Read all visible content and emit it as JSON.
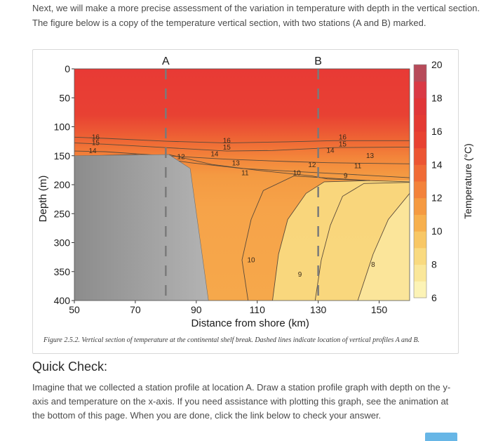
{
  "intro_text": "Next, we will make a more precise assessment of the variation in temperature with depth in the vertical section. The figure below is a copy of the temperature vertical section, with two stations (A and B) marked.",
  "caption": "Figure 2.5.2. Vertical section of temperature at the continental shelf break. Dashed lines indicate location of vertical profiles A and B.",
  "quick_check": {
    "title": "Quick Check:",
    "body": "Imagine that we collected a station profile at location A. Draw a station profile graph with depth on the y-axis and temperature on the x-axis. If you need assistance with plotting this graph, see the animation at the bottom of this page. When you are done, click the link below to check your answer.",
    "button_label": ""
  },
  "chart_data": {
    "type": "heatmap",
    "title": "",
    "xlabel": "Distance from shore (km)",
    "ylabel": "Depth (m)",
    "colorbar_label": "Temperature (°C)",
    "xlim": [
      50,
      160
    ],
    "ylim": [
      0,
      400
    ],
    "y_inverted": true,
    "x_ticks": [
      50,
      70,
      90,
      110,
      130,
      150
    ],
    "y_ticks": [
      0,
      50,
      100,
      150,
      200,
      250,
      300,
      350,
      400
    ],
    "colorbar_range": [
      6,
      20
    ],
    "colorbar_ticks": [
      6,
      8,
      10,
      12,
      14,
      16,
      18,
      20
    ],
    "colorbar_levels": [
      {
        "from": 6,
        "to": 7,
        "color": "#fcf3b6"
      },
      {
        "from": 7,
        "to": 8,
        "color": "#fae79a"
      },
      {
        "from": 8,
        "to": 9,
        "color": "#f9da80"
      },
      {
        "from": 9,
        "to": 10,
        "color": "#f8c765"
      },
      {
        "from": 10,
        "to": 11,
        "color": "#f7b04e"
      },
      {
        "from": 11,
        "to": 12,
        "color": "#f59a42"
      },
      {
        "from": 12,
        "to": 13,
        "color": "#f3823b"
      },
      {
        "from": 13,
        "to": 14,
        "color": "#f06b36"
      },
      {
        "from": 14,
        "to": 15,
        "color": "#ec5533"
      },
      {
        "from": 15,
        "to": 16,
        "color": "#e84232"
      },
      {
        "from": 16,
        "to": 17,
        "color": "#e43a33"
      },
      {
        "from": 17,
        "to": 18,
        "color": "#e03638"
      },
      {
        "from": 18,
        "to": 19,
        "color": "#da3a45"
      },
      {
        "from": 19,
        "to": 20,
        "color": "#b74b5a"
      }
    ],
    "stations": [
      {
        "name": "A",
        "x": 80
      },
      {
        "name": "B",
        "x": 130
      }
    ],
    "seafloor": [
      [
        50,
        150
      ],
      [
        81,
        148
      ],
      [
        88,
        172
      ],
      [
        94,
        400
      ]
    ],
    "isotherms": [
      {
        "value": 16,
        "points": [
          [
            50,
            118
          ],
          [
            60,
            120
          ],
          [
            80,
            125
          ],
          [
            100,
            128
          ],
          [
            120,
            126
          ],
          [
            135,
            124
          ],
          [
            160,
            124
          ]
        ]
      },
      {
        "value": 15,
        "points": [
          [
            50,
            128
          ],
          [
            60,
            130
          ],
          [
            80,
            136
          ],
          [
            100,
            142
          ],
          [
            115,
            141
          ],
          [
            135,
            136
          ],
          [
            160,
            135
          ]
        ]
      },
      {
        "value": 14,
        "points": [
          [
            50,
            142
          ],
          [
            60,
            143
          ],
          [
            80,
            150
          ],
          [
            100,
            156
          ],
          [
            120,
            160
          ],
          [
            133,
            162
          ],
          [
            160,
            164
          ]
        ]
      },
      {
        "value": 13,
        "points": [
          [
            55,
            150
          ],
          [
            70,
            148
          ],
          [
            88,
            162
          ],
          [
            105,
            172
          ],
          [
            125,
            178
          ],
          [
            140,
            182
          ],
          [
            160,
            188
          ]
        ]
      },
      {
        "value": 12,
        "points": [
          [
            81,
            148
          ],
          [
            95,
            165
          ],
          [
            110,
            175
          ],
          [
            128,
            185
          ],
          [
            133,
            190
          ],
          [
            147,
            193
          ]
        ]
      },
      {
        "value": 11,
        "points": [
          [
            107,
            400
          ],
          [
            105,
            330
          ],
          [
            108,
            260
          ],
          [
            112,
            210
          ],
          [
            122,
            185
          ],
          [
            147,
            193
          ],
          [
            160,
            195
          ]
        ]
      },
      {
        "value": 10,
        "points": [
          [
            115,
            400
          ],
          [
            117,
            320
          ],
          [
            120,
            260
          ],
          [
            126,
            215
          ],
          [
            132,
            195
          ],
          [
            147,
            193
          ]
        ]
      },
      {
        "value": 9,
        "points": [
          [
            129,
            400
          ],
          [
            131,
            330
          ],
          [
            134,
            270
          ],
          [
            138,
            220
          ],
          [
            145,
            198
          ],
          [
            160,
            196
          ]
        ]
      },
      {
        "value": 8,
        "points": [
          [
            143,
            400
          ],
          [
            148,
            320
          ],
          [
            153,
            260
          ],
          [
            160,
            215
          ]
        ]
      }
    ],
    "contour_labels": [
      {
        "text": "16",
        "x": 57,
        "y": 118
      },
      {
        "text": "15",
        "x": 57,
        "y": 128
      },
      {
        "text": "14",
        "x": 56,
        "y": 142
      },
      {
        "text": "16",
        "x": 100,
        "y": 124
      },
      {
        "text": "15",
        "x": 100,
        "y": 136
      },
      {
        "text": "14",
        "x": 96,
        "y": 147
      },
      {
        "text": "13",
        "x": 103,
        "y": 163
      },
      {
        "text": "12",
        "x": 85,
        "y": 152
      },
      {
        "text": "11",
        "x": 106,
        "y": 180
      },
      {
        "text": "10",
        "x": 123,
        "y": 180
      },
      {
        "text": "9",
        "x": 139,
        "y": 185
      },
      {
        "text": "10",
        "x": 108,
        "y": 330
      },
      {
        "text": "9",
        "x": 124,
        "y": 355
      },
      {
        "text": "8",
        "x": 148,
        "y": 338
      },
      {
        "text": "12",
        "x": 128,
        "y": 166
      },
      {
        "text": "16",
        "x": 138,
        "y": 118
      },
      {
        "text": "15",
        "x": 138,
        "y": 130
      },
      {
        "text": "14",
        "x": 134,
        "y": 141
      },
      {
        "text": "13",
        "x": 147,
        "y": 150
      },
      {
        "text": "11",
        "x": 143,
        "y": 168
      }
    ]
  }
}
